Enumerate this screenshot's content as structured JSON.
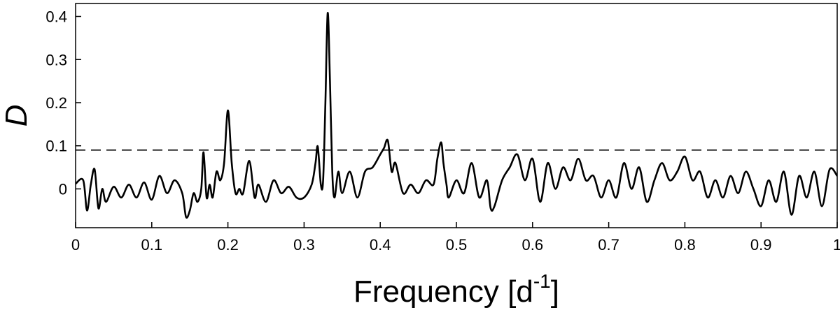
{
  "chart_data": {
    "type": "line",
    "title": "",
    "xlabel": "Frequency [d",
    "xlabel_superscript": "-1",
    "xlabel_suffix": "]",
    "ylabel": "D",
    "xlim": [
      0,
      1
    ],
    "ylim": [
      -0.09,
      0.43
    ],
    "xticks": [
      0,
      0.1,
      0.2,
      0.3,
      0.4,
      0.5,
      0.6,
      0.7,
      0.8,
      0.9,
      1
    ],
    "xtick_labels": [
      "0",
      "0.1",
      "0.2",
      "0.3",
      "0.4",
      "0.5",
      "0.6",
      "0.7",
      "0.8",
      "0.9",
      "1"
    ],
    "yticks": [
      0,
      0.1,
      0.2,
      0.3,
      0.4
    ],
    "ytick_labels": [
      "0",
      "0.1",
      "0.2",
      "0.3",
      "0.4"
    ],
    "grid": false,
    "threshold": {
      "y": 0.09,
      "style": "dashed"
    },
    "series": [
      {
        "color": "#000000",
        "x": [
          0,
          0.01,
          0.015,
          0.02,
          0.025,
          0.03,
          0.035,
          0.04,
          0.05,
          0.06,
          0.07,
          0.08,
          0.09,
          0.1,
          0.11,
          0.12,
          0.13,
          0.14,
          0.145,
          0.15,
          0.155,
          0.16,
          0.165,
          0.168,
          0.172,
          0.176,
          0.18,
          0.185,
          0.19,
          0.195,
          0.2,
          0.205,
          0.21,
          0.215,
          0.22,
          0.228,
          0.235,
          0.24,
          0.25,
          0.26,
          0.27,
          0.28,
          0.29,
          0.3,
          0.31,
          0.315,
          0.318,
          0.322,
          0.325,
          0.328,
          0.331,
          0.334,
          0.337,
          0.34,
          0.345,
          0.35,
          0.36,
          0.37,
          0.38,
          0.39,
          0.4,
          0.405,
          0.41,
          0.415,
          0.42,
          0.43,
          0.44,
          0.45,
          0.46,
          0.47,
          0.475,
          0.48,
          0.483,
          0.487,
          0.49,
          0.5,
          0.51,
          0.52,
          0.53,
          0.54,
          0.545,
          0.55,
          0.56,
          0.57,
          0.58,
          0.59,
          0.6,
          0.61,
          0.62,
          0.63,
          0.64,
          0.65,
          0.66,
          0.67,
          0.68,
          0.69,
          0.7,
          0.71,
          0.72,
          0.73,
          0.74,
          0.75,
          0.76,
          0.77,
          0.78,
          0.79,
          0.8,
          0.81,
          0.82,
          0.83,
          0.84,
          0.85,
          0.86,
          0.87,
          0.88,
          0.89,
          0.9,
          0.91,
          0.92,
          0.93,
          0.94,
          0.95,
          0.96,
          0.97,
          0.98,
          0.99,
          1
        ],
        "values": [
          0.012,
          0.02,
          -0.05,
          0.01,
          0.045,
          -0.045,
          0.0,
          -0.03,
          0.005,
          -0.02,
          0.01,
          -0.02,
          0.015,
          -0.025,
          0.03,
          -0.01,
          0.02,
          -0.01,
          -0.065,
          -0.05,
          -0.01,
          -0.03,
          0.0,
          0.085,
          -0.02,
          0.01,
          -0.02,
          0.04,
          0.02,
          0.06,
          0.182,
          0.06,
          -0.01,
          0.0,
          -0.01,
          0.065,
          -0.02,
          0.01,
          -0.03,
          0.02,
          -0.01,
          0.005,
          -0.02,
          -0.02,
          0.01,
          0.06,
          0.098,
          0.01,
          0.02,
          0.2,
          0.408,
          0.25,
          0.04,
          -0.02,
          0.04,
          -0.01,
          0.04,
          -0.02,
          0.04,
          0.05,
          0.08,
          0.095,
          0.112,
          0.04,
          0.06,
          -0.01,
          0.01,
          -0.01,
          0.02,
          0.01,
          0.07,
          0.108,
          0.06,
          0.01,
          -0.02,
          0.02,
          -0.01,
          0.06,
          -0.02,
          0.02,
          -0.045,
          -0.04,
          0.02,
          0.05,
          0.08,
          0.02,
          0.07,
          -0.03,
          0.06,
          0.0,
          0.05,
          0.02,
          0.07,
          0.02,
          0.03,
          -0.02,
          0.02,
          -0.02,
          0.06,
          0.0,
          0.05,
          -0.03,
          0.02,
          0.06,
          0.02,
          0.04,
          0.075,
          0.02,
          0.04,
          -0.02,
          0.02,
          -0.02,
          0.03,
          -0.01,
          0.04,
          0.0,
          -0.04,
          0.02,
          -0.03,
          0.04,
          -0.06,
          0.03,
          -0.02,
          0.04,
          -0.04,
          0.045,
          0.03
        ]
      }
    ]
  }
}
